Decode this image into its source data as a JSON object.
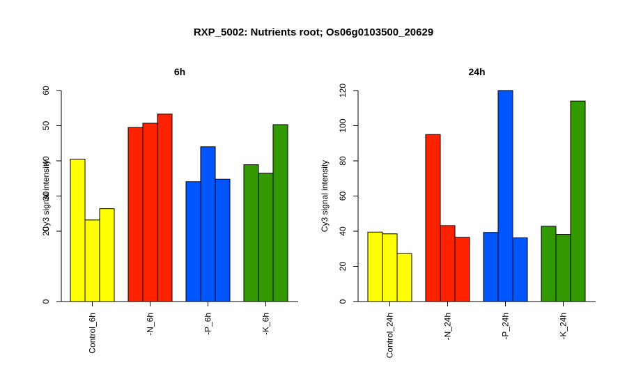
{
  "title": "RXP_5002: Nutrients root; Os06g0103500_20629",
  "chart_data": [
    {
      "type": "bar",
      "title": "6h",
      "ylabel": "Cy3 signal intensity",
      "ylim": [
        0,
        60
      ],
      "yticks": [
        0,
        20,
        30,
        40,
        50,
        60
      ],
      "categories": [
        "Control_6h",
        "-N_6h",
        "-P_6h",
        "-K_6h"
      ],
      "groups": [
        {
          "label": "Control_6h",
          "color": "#ffff00",
          "values": [
            40.5,
            23.2,
            26.4
          ]
        },
        {
          "label": "-N_6h",
          "color": "#ff2200",
          "values": [
            49.5,
            50.7,
            53.3
          ]
        },
        {
          "label": "-P_6h",
          "color": "#0055ff",
          "values": [
            34.1,
            44.0,
            34.8
          ]
        },
        {
          "label": "-K_6h",
          "color": "#339900",
          "values": [
            38.9,
            36.5,
            50.3
          ]
        }
      ]
    },
    {
      "type": "bar",
      "title": "24h",
      "ylabel": "Cy3 signal intensity",
      "ylim": [
        0,
        120
      ],
      "yticks": [
        0,
        20,
        40,
        60,
        80,
        100,
        120
      ],
      "categories": [
        "Control_24h",
        "-N_24h",
        "-P_24h",
        "-K_24h"
      ],
      "groups": [
        {
          "label": "Control_24h",
          "color": "#ffff00",
          "values": [
            39.5,
            38.5,
            27.3
          ]
        },
        {
          "label": "-N_24h",
          "color": "#ff2200",
          "values": [
            95.0,
            43.2,
            36.5
          ]
        },
        {
          "label": "-P_24h",
          "color": "#0055ff",
          "values": [
            39.3,
            120.0,
            36.2
          ]
        },
        {
          "label": "-K_24h",
          "color": "#339900",
          "values": [
            42.8,
            38.2,
            114.0
          ]
        }
      ]
    }
  ]
}
